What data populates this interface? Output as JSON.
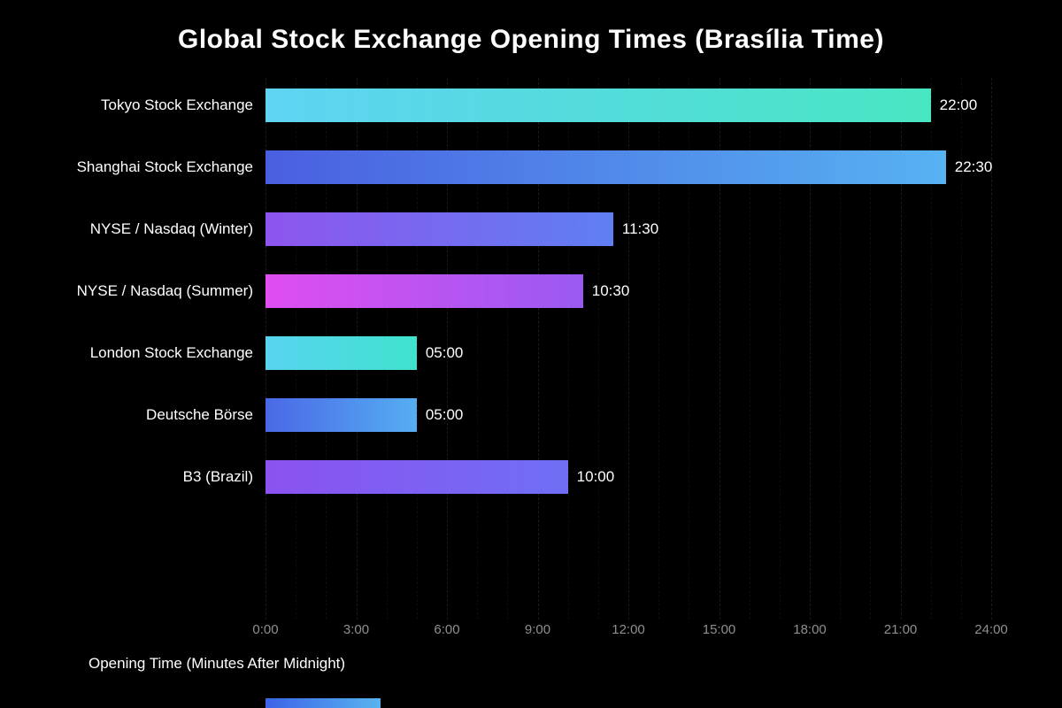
{
  "chart_data": {
    "type": "bar",
    "orientation": "horizontal",
    "title": "Global Stock Exchange Opening Times (Brasília Time)",
    "xlabel": "Opening Time (Minutes After Midnight)",
    "categories": [
      "Tokyo Stock Exchange",
      "Shanghai Stock Exchange",
      "NYSE / Nasdaq (Winter)",
      "NYSE / Nasdaq (Summer)",
      "London Stock Exchange",
      "Deutsche Börse",
      "B3 (Brazil)"
    ],
    "values_minutes": [
      1320,
      1350,
      690,
      630,
      300,
      300,
      600
    ],
    "value_labels": [
      "22:00",
      "22:30",
      "11:30",
      "10:30",
      "05:00",
      "05:00",
      "10:00"
    ],
    "x_ticks": [
      "0:00",
      "3:00",
      "6:00",
      "9:00",
      "12:00",
      "15:00",
      "18:00",
      "21:00",
      "24:00"
    ],
    "x_tick_interval_minutes": 180,
    "xlim": [
      0,
      1440
    ],
    "grid": true,
    "legend": "none",
    "background_color": "#000000",
    "tick_label_color": "#8f8f8f",
    "text_color": "#ffffff",
    "bar_gradients": [
      [
        "#5ed3f3",
        "#49e6c3"
      ],
      [
        "#4a5fe0",
        "#57b2f2"
      ],
      [
        "#8e55ee",
        "#5f7ff2"
      ],
      [
        "#df4ef0",
        "#9a5af2"
      ],
      [
        "#58d4f0",
        "#3fe2cd"
      ],
      [
        "#4a68e6",
        "#55aef2"
      ],
      [
        "#8b52f0",
        "#6f6ff4"
      ]
    ],
    "clipped_bar_gradient": [
      "#3c63e8",
      "#57b4f0"
    ]
  }
}
